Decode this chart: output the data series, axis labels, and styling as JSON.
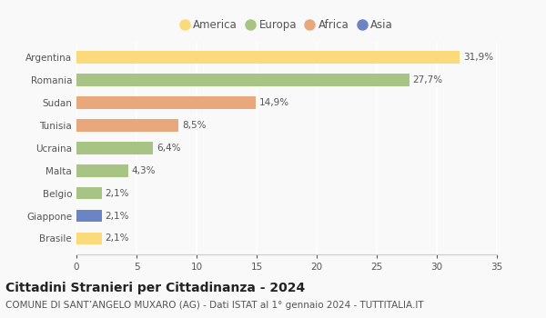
{
  "countries": [
    "Argentina",
    "Romania",
    "Sudan",
    "Tunisia",
    "Ucraina",
    "Malta",
    "Belgio",
    "Giappone",
    "Brasile"
  ],
  "values": [
    31.9,
    27.7,
    14.9,
    8.5,
    6.4,
    4.3,
    2.1,
    2.1,
    2.1
  ],
  "labels": [
    "31,9%",
    "27,7%",
    "14,9%",
    "8,5%",
    "6,4%",
    "4,3%",
    "2,1%",
    "2,1%",
    "2,1%"
  ],
  "colors": [
    "#FADA7A",
    "#A8C484",
    "#E8A87C",
    "#E8A87C",
    "#A8C484",
    "#A8C484",
    "#A8C484",
    "#6B85C4",
    "#FADA7A"
  ],
  "legend_labels": [
    "America",
    "Europa",
    "Africa",
    "Asia"
  ],
  "legend_colors": [
    "#FADA7A",
    "#A8C484",
    "#E8A87C",
    "#6B85C4"
  ],
  "xlim": [
    0,
    35
  ],
  "xticks": [
    0,
    5,
    10,
    15,
    20,
    25,
    30,
    35
  ],
  "title": "Cittadini Stranieri per Cittadinanza - 2024",
  "subtitle": "COMUNE DI SANT’ANGELO MUXARO (AG) - Dati ISTAT al 1° gennaio 2024 - TUTTITALIA.IT",
  "background_color": "#f9f9f9",
  "grid_color": "#ffffff",
  "bar_height": 0.55,
  "title_fontsize": 10,
  "subtitle_fontsize": 7.5,
  "label_fontsize": 7.5,
  "tick_fontsize": 7.5,
  "legend_fontsize": 8.5
}
